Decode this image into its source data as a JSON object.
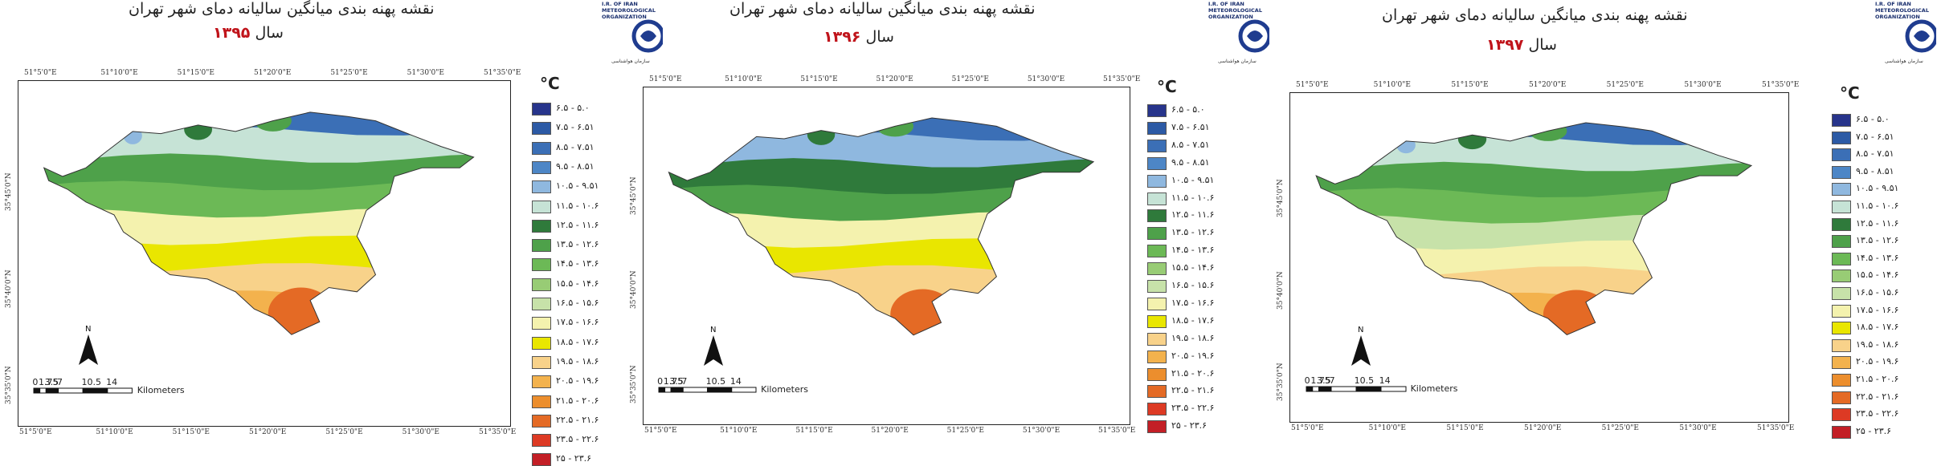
{
  "palette": [
    "#27348b",
    "#2c5aa5",
    "#3b6fb6",
    "#4d86c6",
    "#8fb8df",
    "#c6e3d6",
    "#2f7a3b",
    "#4ea14a",
    "#6cb956",
    "#98cc75",
    "#c7e2a9",
    "#f4f2ae",
    "#e9e600",
    "#f8d28a",
    "#f3b24d",
    "#ec8e2d",
    "#e46a25",
    "#dd3a24",
    "#c31f26",
    "#9e1a1f"
  ],
  "legend_labels": [
    "۵.۰ - ۶.۵",
    "۶.۵۱ - ۷.۵",
    "۷.۵۱ - ۸.۵",
    "۸.۵۱ - ۹.۵",
    "۹.۵۱ - ۱۰.۵",
    "۱۰.۶ - ۱۱.۵",
    "۱۱.۶ - ۱۲.۵",
    "۱۲.۶ - ۱۳.۵",
    "۱۳.۶ - ۱۴.۵",
    "۱۴.۶ - ۱۵.۵",
    "۱۵.۶ - ۱۶.۵",
    "۱۶.۶ - ۱۷.۵",
    "۱۷.۶ - ۱۸.۵",
    "۱۸.۶ - ۱۹.۵",
    "۱۹.۶ - ۲۰.۵",
    "۲۰.۶ - ۲۱.۵",
    "۲۱.۶ - ۲۲.۵",
    "۲۲.۶ - ۲۳.۵",
    "۲۳.۶ - ۲۵"
  ],
  "unit": "°C",
  "top_ticks": [
    "51°5'0\"E",
    "51°10'0\"E",
    "51°15'0\"E",
    "51°20'0\"E",
    "51°25'0\"E",
    "51°30'0\"E",
    "51°35'0\"E"
  ],
  "bottom_ticks": [
    "51°5'0\"E",
    "51°10'0\"E",
    "51°15'0\"E",
    "51°20'0\"E",
    "51°25'0\"E",
    "51°30'0\"E",
    "51°35'0\"E"
  ],
  "left_ticks": [
    "35°45'0\"N",
    "35°40'0\"N",
    "35°35'0\"N"
  ],
  "north_label": "N",
  "scale_numbers": [
    "0",
    "1.75",
    "3.5",
    "7",
    "10.5",
    "14"
  ],
  "scale_unit": "Kilometers",
  "maps": [
    {
      "title": "نقشه پهنه بندی میانگین سالیانه دمای شهر تهران",
      "year_label": "سال",
      "year": "۱۳۹۵"
    },
    {
      "title": "نقشه پهنه بندی میانگین سالیانه دمای شهر تهران",
      "year_label": "سال",
      "year": "۱۳۹۶"
    },
    {
      "title": "نقشه پهنه بندی میانگین سالیانه دمای شهر تهران",
      "year_label": "سال",
      "year": "۱۳۹۷"
    }
  ],
  "logo_text": {
    "line1": "I.R. OF IRAN",
    "line2": "METEOROLOGICAL",
    "line3": "ORGANIZATION",
    "line4": "سازمان هواشناسی"
  }
}
